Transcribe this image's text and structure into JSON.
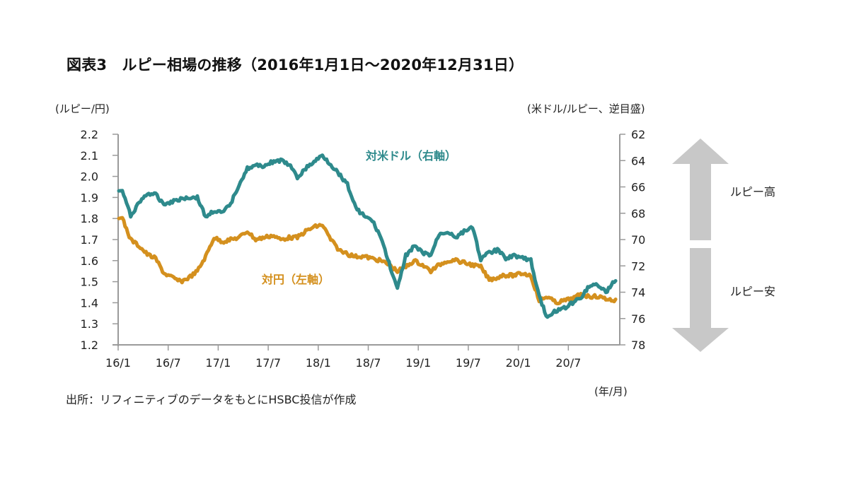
{
  "title": "図表3　ルピー相場の推移（2016年1月1日～2020年12月31日）",
  "source": "出所：リフィニティブのデータをもとにHSBC投信が作成",
  "arrows": {
    "up_label": "ルピー高",
    "down_label": "ルピー安",
    "color": "#c8c8c8"
  },
  "chart_data": {
    "type": "line",
    "title": "図表3　ルピー相場の推移（2016年1月1日～2020年12月31日）",
    "xlabel": "(年/月)",
    "ylabel_left": "(ルピー/円)",
    "ylabel_right": "(米ドル/ルピー、逆目盛)",
    "x_tick_labels": [
      "16/1",
      "16/7",
      "17/1",
      "17/7",
      "18/1",
      "18/7",
      "19/1",
      "19/7",
      "20/1",
      "20/7"
    ],
    "y_left": {
      "min": 1.2,
      "max": 2.2,
      "ticks": [
        "2.2",
        "2.1",
        "2.0",
        "1.9",
        "1.8",
        "1.7",
        "1.6",
        "1.5",
        "1.4",
        "1.3",
        "1.2"
      ]
    },
    "y_right": {
      "min": 62,
      "max": 78,
      "inverted": true,
      "ticks": [
        "62",
        "64",
        "66",
        "68",
        "70",
        "72",
        "74",
        "76",
        "78"
      ]
    },
    "grid": false,
    "x_months": [
      "2016-01",
      "2016-02",
      "2016-03",
      "2016-04",
      "2016-05",
      "2016-06",
      "2016-07",
      "2016-08",
      "2016-09",
      "2016-10",
      "2016-11",
      "2016-12",
      "2017-01",
      "2017-02",
      "2017-03",
      "2017-04",
      "2017-05",
      "2017-06",
      "2017-07",
      "2017-08",
      "2017-09",
      "2017-10",
      "2017-11",
      "2017-12",
      "2018-01",
      "2018-02",
      "2018-03",
      "2018-04",
      "2018-05",
      "2018-06",
      "2018-07",
      "2018-08",
      "2018-09",
      "2018-10",
      "2018-11",
      "2018-12",
      "2019-01",
      "2019-02",
      "2019-03",
      "2019-04",
      "2019-05",
      "2019-06",
      "2019-07",
      "2019-08",
      "2019-09",
      "2019-10",
      "2019-11",
      "2019-12",
      "2020-01",
      "2020-02",
      "2020-03",
      "2020-04",
      "2020-05",
      "2020-06",
      "2020-07",
      "2020-08",
      "2020-09",
      "2020-10",
      "2020-11",
      "2020-12"
    ],
    "series": [
      {
        "name": "対米ドル（右軸）",
        "axis": "right",
        "color": "#2e8a8c",
        "values": [
          66.3,
          68.2,
          67.2,
          66.5,
          66.6,
          67.3,
          67.1,
          66.9,
          66.8,
          66.8,
          68.3,
          67.8,
          68.0,
          67.3,
          65.8,
          64.6,
          64.4,
          64.4,
          64.1,
          64.0,
          64.3,
          65.3,
          64.6,
          64.1,
          63.6,
          64.3,
          65.0,
          65.8,
          67.6,
          68.2,
          68.6,
          69.8,
          71.8,
          73.8,
          71.2,
          70.5,
          71.0,
          71.2,
          69.6,
          69.4,
          69.8,
          69.4,
          69.0,
          71.5,
          71.0,
          70.8,
          71.4,
          71.2,
          71.4,
          71.6,
          74.3,
          76.0,
          75.4,
          75.2,
          74.8,
          74.4,
          73.5,
          73.4,
          74.0,
          73.2
        ]
      },
      {
        "name": "対円（左軸）",
        "axis": "left",
        "color": "#d4901e",
        "values": [
          1.8,
          1.7,
          1.67,
          1.63,
          1.61,
          1.54,
          1.52,
          1.5,
          1.52,
          1.55,
          1.62,
          1.71,
          1.69,
          1.7,
          1.71,
          1.74,
          1.7,
          1.71,
          1.72,
          1.7,
          1.71,
          1.71,
          1.74,
          1.76,
          1.77,
          1.7,
          1.65,
          1.63,
          1.62,
          1.62,
          1.61,
          1.6,
          1.58,
          1.55,
          1.57,
          1.6,
          1.58,
          1.55,
          1.58,
          1.6,
          1.6,
          1.59,
          1.58,
          1.57,
          1.51,
          1.52,
          1.53,
          1.53,
          1.54,
          1.53,
          1.41,
          1.43,
          1.4,
          1.41,
          1.42,
          1.44,
          1.43,
          1.43,
          1.42,
          1.41
        ]
      }
    ]
  }
}
